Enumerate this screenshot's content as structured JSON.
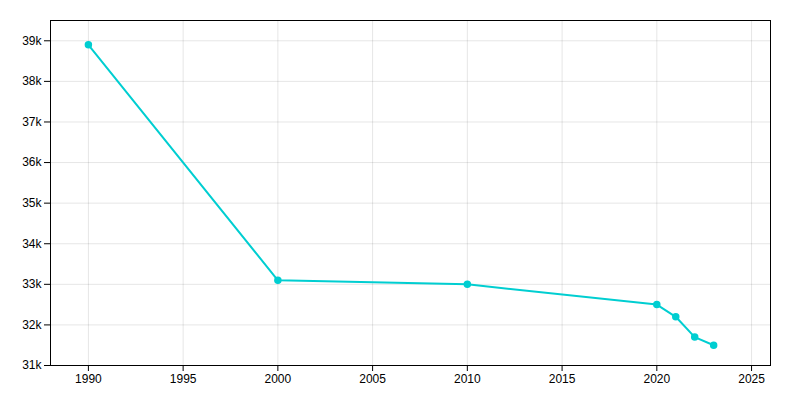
{
  "chart_data": {
    "type": "line",
    "x": [
      1990,
      2000,
      2010,
      2020,
      2021,
      2022,
      2023
    ],
    "values": [
      38900,
      33100,
      33000,
      32500,
      32200,
      31700,
      31500
    ],
    "color": "#00CED1",
    "marker": "circle",
    "xlim": [
      1988,
      2026
    ],
    "ylim": [
      31000,
      39500
    ],
    "xticks": [
      1990,
      1995,
      2000,
      2005,
      2010,
      2015,
      2020,
      2025
    ],
    "yticks": [
      {
        "value": 31000,
        "label": "31k"
      },
      {
        "value": 32000,
        "label": "32k"
      },
      {
        "value": 33000,
        "label": "33k"
      },
      {
        "value": 34000,
        "label": "34k"
      },
      {
        "value": 35000,
        "label": "35k"
      },
      {
        "value": 36000,
        "label": "36k"
      },
      {
        "value": 37000,
        "label": "37k"
      },
      {
        "value": 38000,
        "label": "38k"
      },
      {
        "value": 39000,
        "label": "39k"
      }
    ],
    "grid": true
  }
}
